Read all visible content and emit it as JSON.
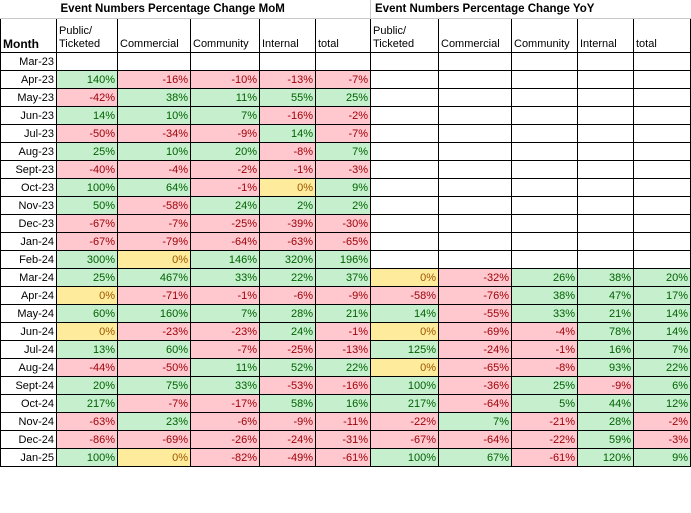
{
  "titles": {
    "mom": "Event Numbers Percentage Change MoM",
    "yoy": "Event Numbers Percentage Change YoY"
  },
  "headers": {
    "month": "Month",
    "mom": [
      "Public/\nTicketed",
      "Commercial",
      "Community",
      "Internal",
      "total"
    ],
    "yoy": [
      "Public/\nTicketed",
      "Commercial",
      "Community",
      "Internal",
      "total"
    ]
  },
  "rows": [
    {
      "month": "Mar-23",
      "mom": [
        [
          "",
          ""
        ],
        [
          "",
          ""
        ],
        [
          "",
          ""
        ],
        [
          "",
          ""
        ],
        [
          "",
          ""
        ]
      ],
      "yoy": [
        [
          "",
          ""
        ],
        [
          "",
          ""
        ],
        [
          "",
          ""
        ],
        [
          "",
          ""
        ],
        [
          "",
          ""
        ]
      ]
    },
    {
      "month": "Apr-23",
      "mom": [
        [
          "140%",
          "g"
        ],
        [
          "-16%",
          "r"
        ],
        [
          "-10%",
          "r"
        ],
        [
          "-13%",
          "r"
        ],
        [
          "-7%",
          "r"
        ]
      ],
      "yoy": [
        [
          "",
          ""
        ],
        [
          "",
          ""
        ],
        [
          "",
          ""
        ],
        [
          "",
          ""
        ],
        [
          "",
          ""
        ]
      ]
    },
    {
      "month": "May-23",
      "mom": [
        [
          "-42%",
          "r"
        ],
        [
          "38%",
          "g"
        ],
        [
          "11%",
          "g"
        ],
        [
          "55%",
          "g"
        ],
        [
          "25%",
          "g"
        ]
      ],
      "yoy": [
        [
          "",
          ""
        ],
        [
          "",
          ""
        ],
        [
          "",
          ""
        ],
        [
          "",
          ""
        ],
        [
          "",
          ""
        ]
      ]
    },
    {
      "month": "Jun-23",
      "mom": [
        [
          "14%",
          "g"
        ],
        [
          "10%",
          "g"
        ],
        [
          "7%",
          "g"
        ],
        [
          "-16%",
          "r"
        ],
        [
          "-2%",
          "r"
        ]
      ],
      "yoy": [
        [
          "",
          ""
        ],
        [
          "",
          ""
        ],
        [
          "",
          ""
        ],
        [
          "",
          ""
        ],
        [
          "",
          ""
        ]
      ]
    },
    {
      "month": "Jul-23",
      "mom": [
        [
          "-50%",
          "r"
        ],
        [
          "-34%",
          "r"
        ],
        [
          "-9%",
          "r"
        ],
        [
          "14%",
          "g"
        ],
        [
          "-7%",
          "r"
        ]
      ],
      "yoy": [
        [
          "",
          ""
        ],
        [
          "",
          ""
        ],
        [
          "",
          ""
        ],
        [
          "",
          ""
        ],
        [
          "",
          ""
        ]
      ]
    },
    {
      "month": "Aug-23",
      "mom": [
        [
          "25%",
          "g"
        ],
        [
          "10%",
          "g"
        ],
        [
          "20%",
          "g"
        ],
        [
          "-8%",
          "r"
        ],
        [
          "7%",
          "g"
        ]
      ],
      "yoy": [
        [
          "",
          ""
        ],
        [
          "",
          ""
        ],
        [
          "",
          ""
        ],
        [
          "",
          ""
        ],
        [
          "",
          ""
        ]
      ]
    },
    {
      "month": "Sept-23",
      "mom": [
        [
          "-40%",
          "r"
        ],
        [
          "-4%",
          "r"
        ],
        [
          "-2%",
          "r"
        ],
        [
          "-1%",
          "r"
        ],
        [
          "-3%",
          "r"
        ]
      ],
      "yoy": [
        [
          "",
          ""
        ],
        [
          "",
          ""
        ],
        [
          "",
          ""
        ],
        [
          "",
          ""
        ],
        [
          "",
          ""
        ]
      ]
    },
    {
      "month": "Oct-23",
      "mom": [
        [
          "100%",
          "g"
        ],
        [
          "64%",
          "g"
        ],
        [
          "-1%",
          "r"
        ],
        [
          "0%",
          "y"
        ],
        [
          "9%",
          "g"
        ]
      ],
      "yoy": [
        [
          "",
          ""
        ],
        [
          "",
          ""
        ],
        [
          "",
          ""
        ],
        [
          "",
          ""
        ],
        [
          "",
          ""
        ]
      ]
    },
    {
      "month": "Nov-23",
      "mom": [
        [
          "50%",
          "g"
        ],
        [
          "-58%",
          "r"
        ],
        [
          "24%",
          "g"
        ],
        [
          "2%",
          "g"
        ],
        [
          "2%",
          "g"
        ]
      ],
      "yoy": [
        [
          "",
          ""
        ],
        [
          "",
          ""
        ],
        [
          "",
          ""
        ],
        [
          "",
          ""
        ],
        [
          "",
          ""
        ]
      ]
    },
    {
      "month": "Dec-23",
      "mom": [
        [
          "-67%",
          "r"
        ],
        [
          "-7%",
          "r"
        ],
        [
          "-25%",
          "r"
        ],
        [
          "-39%",
          "r"
        ],
        [
          "-30%",
          "r"
        ]
      ],
      "yoy": [
        [
          "",
          ""
        ],
        [
          "",
          ""
        ],
        [
          "",
          ""
        ],
        [
          "",
          ""
        ],
        [
          "",
          ""
        ]
      ]
    },
    {
      "month": "Jan-24",
      "mom": [
        [
          "-67%",
          "r"
        ],
        [
          "-79%",
          "r"
        ],
        [
          "-64%",
          "r"
        ],
        [
          "-63%",
          "r"
        ],
        [
          "-65%",
          "r"
        ]
      ],
      "yoy": [
        [
          "",
          ""
        ],
        [
          "",
          ""
        ],
        [
          "",
          ""
        ],
        [
          "",
          ""
        ],
        [
          "",
          ""
        ]
      ]
    },
    {
      "month": "Feb-24",
      "mom": [
        [
          "300%",
          "g"
        ],
        [
          "0%",
          "y"
        ],
        [
          "146%",
          "g"
        ],
        [
          "320%",
          "g"
        ],
        [
          "196%",
          "g"
        ]
      ],
      "yoy": [
        [
          "",
          ""
        ],
        [
          "",
          ""
        ],
        [
          "",
          ""
        ],
        [
          "",
          ""
        ],
        [
          "",
          ""
        ]
      ]
    },
    {
      "month": "Mar-24",
      "mom": [
        [
          "25%",
          "g"
        ],
        [
          "467%",
          "g"
        ],
        [
          "33%",
          "g"
        ],
        [
          "22%",
          "g"
        ],
        [
          "37%",
          "g"
        ]
      ],
      "yoy": [
        [
          "0%",
          "y"
        ],
        [
          "-32%",
          "r"
        ],
        [
          "26%",
          "g"
        ],
        [
          "38%",
          "g"
        ],
        [
          "20%",
          "g"
        ]
      ]
    },
    {
      "month": "Apr-24",
      "mom": [
        [
          "0%",
          "y"
        ],
        [
          "-71%",
          "r"
        ],
        [
          "-1%",
          "r"
        ],
        [
          "-6%",
          "r"
        ],
        [
          "-9%",
          "r"
        ]
      ],
      "yoy": [
        [
          "-58%",
          "r"
        ],
        [
          "-76%",
          "r"
        ],
        [
          "38%",
          "g"
        ],
        [
          "47%",
          "g"
        ],
        [
          "17%",
          "g"
        ]
      ]
    },
    {
      "month": "May-24",
      "mom": [
        [
          "60%",
          "g"
        ],
        [
          "160%",
          "g"
        ],
        [
          "7%",
          "g"
        ],
        [
          "28%",
          "g"
        ],
        [
          "21%",
          "g"
        ]
      ],
      "yoy": [
        [
          "14%",
          "g"
        ],
        [
          "-55%",
          "r"
        ],
        [
          "33%",
          "g"
        ],
        [
          "21%",
          "g"
        ],
        [
          "14%",
          "g"
        ]
      ]
    },
    {
      "month": "Jun-24",
      "mom": [
        [
          "0%",
          "y"
        ],
        [
          "-23%",
          "r"
        ],
        [
          "-23%",
          "r"
        ],
        [
          "24%",
          "g"
        ],
        [
          "-1%",
          "r"
        ]
      ],
      "yoy": [
        [
          "0%",
          "y"
        ],
        [
          "-69%",
          "r"
        ],
        [
          "-4%",
          "r"
        ],
        [
          "78%",
          "g"
        ],
        [
          "14%",
          "g"
        ]
      ]
    },
    {
      "month": "Jul-24",
      "mom": [
        [
          "13%",
          "g"
        ],
        [
          "60%",
          "g"
        ],
        [
          "-7%",
          "r"
        ],
        [
          "-25%",
          "r"
        ],
        [
          "-13%",
          "r"
        ]
      ],
      "yoy": [
        [
          "125%",
          "g"
        ],
        [
          "-24%",
          "r"
        ],
        [
          "-1%",
          "r"
        ],
        [
          "16%",
          "g"
        ],
        [
          "7%",
          "g"
        ]
      ]
    },
    {
      "month": "Aug-24",
      "mom": [
        [
          "-44%",
          "r"
        ],
        [
          "-50%",
          "r"
        ],
        [
          "11%",
          "g"
        ],
        [
          "52%",
          "g"
        ],
        [
          "22%",
          "g"
        ]
      ],
      "yoy": [
        [
          "0%",
          "y"
        ],
        [
          "-65%",
          "r"
        ],
        [
          "-8%",
          "r"
        ],
        [
          "93%",
          "g"
        ],
        [
          "22%",
          "g"
        ]
      ]
    },
    {
      "month": "Sept-24",
      "mom": [
        [
          "20%",
          "g"
        ],
        [
          "75%",
          "g"
        ],
        [
          "33%",
          "g"
        ],
        [
          "-53%",
          "r"
        ],
        [
          "-16%",
          "r"
        ]
      ],
      "yoy": [
        [
          "100%",
          "g"
        ],
        [
          "-36%",
          "r"
        ],
        [
          "25%",
          "g"
        ],
        [
          "-9%",
          "r"
        ],
        [
          "6%",
          "g"
        ]
      ]
    },
    {
      "month": "Oct-24",
      "mom": [
        [
          "217%",
          "g"
        ],
        [
          "-7%",
          "r"
        ],
        [
          "-17%",
          "r"
        ],
        [
          "58%",
          "g"
        ],
        [
          "16%",
          "g"
        ]
      ],
      "yoy": [
        [
          "217%",
          "g"
        ],
        [
          "-64%",
          "r"
        ],
        [
          "5%",
          "g"
        ],
        [
          "44%",
          "g"
        ],
        [
          "12%",
          "g"
        ]
      ]
    },
    {
      "month": "Nov-24",
      "mom": [
        [
          "-63%",
          "r"
        ],
        [
          "23%",
          "g"
        ],
        [
          "-6%",
          "r"
        ],
        [
          "-9%",
          "r"
        ],
        [
          "-11%",
          "r"
        ]
      ],
      "yoy": [
        [
          "-22%",
          "r"
        ],
        [
          "7%",
          "g"
        ],
        [
          "-21%",
          "r"
        ],
        [
          "28%",
          "g"
        ],
        [
          "-2%",
          "r"
        ]
      ]
    },
    {
      "month": "Dec-24",
      "mom": [
        [
          "-86%",
          "r"
        ],
        [
          "-69%",
          "r"
        ],
        [
          "-26%",
          "r"
        ],
        [
          "-24%",
          "r"
        ],
        [
          "-31%",
          "r"
        ]
      ],
      "yoy": [
        [
          "-67%",
          "r"
        ],
        [
          "-64%",
          "r"
        ],
        [
          "-22%",
          "r"
        ],
        [
          "59%",
          "g"
        ],
        [
          "-3%",
          "r"
        ]
      ]
    },
    {
      "month": "Jan-25",
      "mom": [
        [
          "100%",
          "g"
        ],
        [
          "0%",
          "y"
        ],
        [
          "-82%",
          "r"
        ],
        [
          "-49%",
          "r"
        ],
        [
          "-61%",
          "r"
        ]
      ],
      "yoy": [
        [
          "100%",
          "g"
        ],
        [
          "67%",
          "g"
        ],
        [
          "-61%",
          "r"
        ],
        [
          "120%",
          "g"
        ],
        [
          "9%",
          "g"
        ]
      ]
    }
  ]
}
